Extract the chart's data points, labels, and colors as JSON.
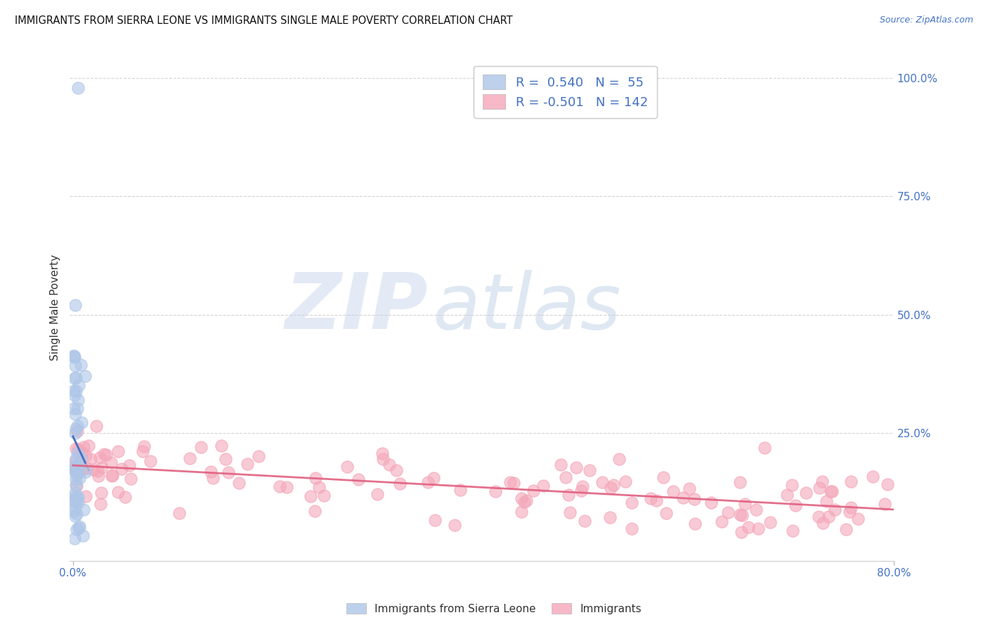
{
  "title": "IMMIGRANTS FROM SIERRA LEONE VS IMMIGRANTS SINGLE MALE POVERTY CORRELATION CHART",
  "source": "Source: ZipAtlas.com",
  "ylabel": "Single Male Poverty",
  "legend_blue_r": "0.540",
  "legend_blue_n": "55",
  "legend_pink_r": "-0.501",
  "legend_pink_n": "142",
  "legend1_label": "Immigrants from Sierra Leone",
  "legend2_label": "Immigrants",
  "blue_color": "#aec6e8",
  "pink_color": "#f4a7b9",
  "blue_line_color": "#4472c4",
  "pink_line_color": "#e06080",
  "blue_line_dash_color": "#8ab4d8",
  "xlim": [
    0.0,
    0.8
  ],
  "ylim": [
    -0.02,
    1.05
  ],
  "x_ticks": [
    0.0,
    0.8
  ],
  "x_tick_labels": [
    "0.0%",
    "80.0%"
  ],
  "y_ticks_right": [
    1.0,
    0.75,
    0.5,
    0.25
  ],
  "y_tick_labels_right": [
    "100.0%",
    "75.0%",
    "50.0%",
    "25.0%"
  ],
  "background_color": "#ffffff",
  "grid_color": "#d0d0d0",
  "tick_label_color": "#4472c4"
}
